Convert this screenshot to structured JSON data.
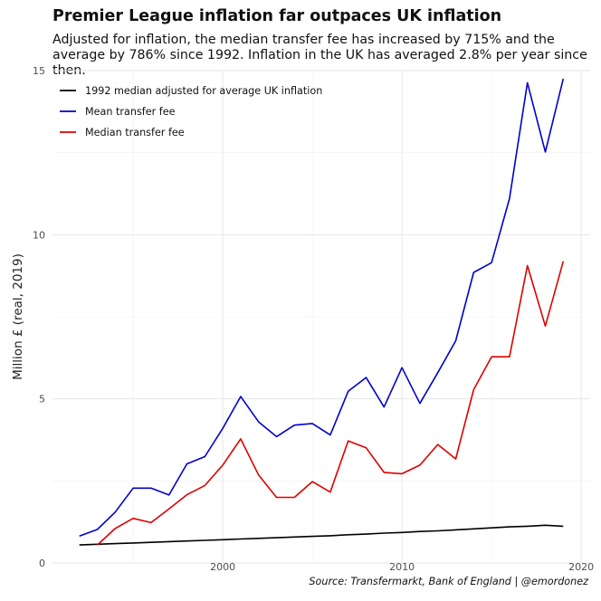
{
  "header": {
    "title": "Premier League inflation far outpaces UK inflation",
    "subtitle": "Adjusted for inflation, the median transfer fee has increased by 715% and the average by 786% since 1992. Inflation in the UK has averaged 2.8% per year since then."
  },
  "caption": "Source: Transfermarkt, Bank of England | @emordonez",
  "chart_data": {
    "type": "line",
    "title": "Premier League inflation far outpaces UK inflation",
    "xlabel": "",
    "ylabel": "Million £ (real, 2019)",
    "xlim": [
      1990.5,
      2020.5
    ],
    "ylim": [
      0,
      15
    ],
    "x_ticks": [
      2000,
      2010,
      2020
    ],
    "y_ticks": [
      0,
      5,
      10,
      15
    ],
    "grid": true,
    "legend_position": "top-left",
    "series": [
      {
        "name": "1992 median adjusted for average UK inflation",
        "color": "#000000",
        "x": [
          1992,
          1993,
          1994,
          1995,
          1996,
          1997,
          1998,
          1999,
          2000,
          2001,
          2002,
          2003,
          2004,
          2005,
          2006,
          2007,
          2008,
          2009,
          2010,
          2011,
          2012,
          2013,
          2014,
          2015,
          2016,
          2017,
          2018,
          2019
        ],
        "values": [
          0.55,
          0.57,
          0.59,
          0.61,
          0.63,
          0.65,
          0.67,
          0.69,
          0.71,
          0.73,
          0.75,
          0.77,
          0.79,
          0.81,
          0.83,
          0.86,
          0.88,
          0.91,
          0.93,
          0.96,
          0.98,
          1.01,
          1.04,
          1.07,
          1.1,
          1.12,
          1.15,
          1.12
        ]
      },
      {
        "name": "Mean transfer fee",
        "color": "#0000cc",
        "x": [
          1992,
          1993,
          1994,
          1995,
          1996,
          1997,
          1998,
          1999,
          2000,
          2001,
          2002,
          2003,
          2004,
          2005,
          2006,
          2007,
          2008,
          2009,
          2010,
          2011,
          2012,
          2013,
          2014,
          2015,
          2016,
          2017,
          2018,
          2019
        ],
        "values": [
          0.82,
          1.02,
          1.55,
          2.28,
          2.28,
          2.07,
          3.02,
          3.24,
          4.1,
          5.07,
          4.3,
          3.85,
          4.2,
          4.25,
          3.9,
          5.23,
          5.65,
          4.75,
          5.95,
          4.86,
          5.8,
          6.77,
          8.85,
          9.15,
          11.1,
          14.63,
          12.52,
          14.75
        ]
      },
      {
        "name": "Median transfer fee",
        "color": "#dd0000",
        "x": [
          1993,
          1994,
          1995,
          1996,
          1997,
          1998,
          1999,
          2000,
          2001,
          2002,
          2003,
          2004,
          2005,
          2006,
          2007,
          2008,
          2009,
          2010,
          2011,
          2012,
          2013,
          2014,
          2015,
          2016,
          2017,
          2018,
          2019
        ],
        "values": [
          0.55,
          1.05,
          1.36,
          1.23,
          1.65,
          2.08,
          2.36,
          2.98,
          3.78,
          2.68,
          2.0,
          2.0,
          2.48,
          2.16,
          3.72,
          3.51,
          2.76,
          2.72,
          2.98,
          3.61,
          3.17,
          5.28,
          6.28,
          6.28,
          9.06,
          7.22,
          9.19
        ]
      }
    ]
  }
}
